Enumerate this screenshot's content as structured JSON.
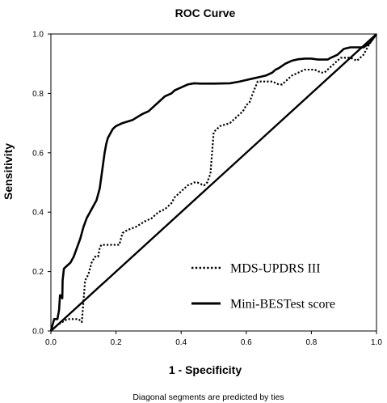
{
  "chart_data": {
    "type": "line",
    "title": "ROC Curve",
    "xlabel": "1 - Specificity",
    "ylabel": "Sensitivity",
    "footnote": "Diagonal segments are predicted by ties",
    "xlim": [
      0,
      1
    ],
    "ylim": [
      0,
      1
    ],
    "xticks": [
      "0.0",
      "0.2",
      "0.4",
      "0.6",
      "0.8",
      "1.0"
    ],
    "yticks": [
      "0.0",
      "0.2",
      "0.4",
      "0.6",
      "0.8",
      "1.0"
    ],
    "grid": false,
    "legend_position": "bottom-right",
    "series": [
      {
        "name": "MDS-UPDRS III",
        "style": "dotted",
        "color": "#000000",
        "x": [
          0,
          0.02,
          0.05,
          0.085,
          0.095,
          0.105,
          0.115,
          0.125,
          0.135,
          0.145,
          0.15,
          0.155,
          0.16,
          0.17,
          0.19,
          0.21,
          0.22,
          0.235,
          0.26,
          0.29,
          0.31,
          0.33,
          0.35,
          0.37,
          0.38,
          0.4,
          0.42,
          0.44,
          0.45,
          0.47,
          0.48,
          0.49,
          0.495,
          0.5,
          0.52,
          0.55,
          0.57,
          0.59,
          0.6,
          0.61,
          0.62,
          0.635,
          0.65,
          0.68,
          0.7,
          0.71,
          0.73,
          0.74,
          0.76,
          0.78,
          0.81,
          0.83,
          0.84,
          0.86,
          0.88,
          0.89,
          0.92,
          0.94,
          0.96,
          0.98,
          1.0
        ],
        "y": [
          0,
          0.02,
          0.04,
          0.04,
          0.03,
          0.17,
          0.19,
          0.23,
          0.25,
          0.25,
          0.28,
          0.29,
          0.29,
          0.29,
          0.29,
          0.29,
          0.33,
          0.34,
          0.35,
          0.37,
          0.38,
          0.4,
          0.41,
          0.43,
          0.45,
          0.47,
          0.49,
          0.5,
          0.5,
          0.49,
          0.5,
          0.53,
          0.6,
          0.67,
          0.69,
          0.7,
          0.72,
          0.74,
          0.76,
          0.77,
          0.8,
          0.84,
          0.84,
          0.84,
          0.83,
          0.83,
          0.85,
          0.86,
          0.87,
          0.88,
          0.88,
          0.87,
          0.87,
          0.89,
          0.91,
          0.92,
          0.92,
          0.91,
          0.93,
          0.97,
          1.0
        ]
      },
      {
        "name": "Mini-BESTest score",
        "style": "solid",
        "color": "#000000",
        "x": [
          0,
          0.005,
          0.01,
          0.02,
          0.025,
          0.028,
          0.03,
          0.035,
          0.036,
          0.04,
          0.05,
          0.06,
          0.07,
          0.08,
          0.09,
          0.1,
          0.11,
          0.12,
          0.13,
          0.14,
          0.145,
          0.15,
          0.155,
          0.16,
          0.165,
          0.17,
          0.175,
          0.18,
          0.19,
          0.2,
          0.22,
          0.25,
          0.28,
          0.3,
          0.32,
          0.33,
          0.34,
          0.35,
          0.37,
          0.38,
          0.4,
          0.42,
          0.44,
          0.46,
          0.5,
          0.55,
          0.58,
          0.6,
          0.62,
          0.64,
          0.66,
          0.68,
          0.69,
          0.7,
          0.72,
          0.74,
          0.76,
          0.78,
          0.8,
          0.82,
          0.84,
          0.85,
          0.86,
          0.87,
          0.88,
          0.9,
          0.92,
          0.93,
          0.94,
          0.96,
          0.98,
          1.0
        ],
        "y": [
          0,
          0.02,
          0.04,
          0.04,
          0.07,
          0.12,
          0.12,
          0.11,
          0.17,
          0.21,
          0.22,
          0.23,
          0.25,
          0.28,
          0.31,
          0.35,
          0.38,
          0.4,
          0.42,
          0.44,
          0.46,
          0.48,
          0.52,
          0.56,
          0.6,
          0.63,
          0.65,
          0.66,
          0.68,
          0.69,
          0.7,
          0.71,
          0.73,
          0.74,
          0.76,
          0.77,
          0.78,
          0.79,
          0.8,
          0.81,
          0.82,
          0.83,
          0.834,
          0.833,
          0.833,
          0.834,
          0.84,
          0.845,
          0.85,
          0.855,
          0.86,
          0.87,
          0.88,
          0.885,
          0.9,
          0.91,
          0.915,
          0.917,
          0.917,
          0.914,
          0.914,
          0.914,
          0.92,
          0.925,
          0.93,
          0.95,
          0.955,
          0.955,
          0.955,
          0.955,
          0.97,
          1.0
        ]
      }
    ],
    "reference_line": {
      "x": [
        0,
        1
      ],
      "y": [
        0,
        1
      ]
    }
  }
}
